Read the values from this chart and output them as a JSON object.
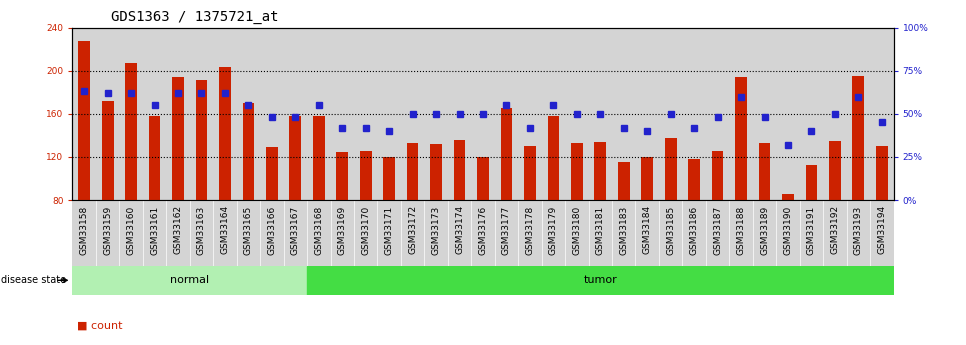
{
  "title": "GDS1363 / 1375721_at",
  "samples": [
    "GSM33158",
    "GSM33159",
    "GSM33160",
    "GSM33161",
    "GSM33162",
    "GSM33163",
    "GSM33164",
    "GSM33165",
    "GSM33166",
    "GSM33167",
    "GSM33168",
    "GSM33169",
    "GSM33170",
    "GSM33171",
    "GSM33172",
    "GSM33173",
    "GSM33174",
    "GSM33176",
    "GSM33177",
    "GSM33178",
    "GSM33179",
    "GSM33180",
    "GSM33181",
    "GSM33183",
    "GSM33184",
    "GSM33185",
    "GSM33186",
    "GSM33187",
    "GSM33188",
    "GSM33189",
    "GSM33190",
    "GSM33191",
    "GSM33192",
    "GSM33193",
    "GSM33194"
  ],
  "counts": [
    228,
    172,
    207,
    158,
    194,
    191,
    203,
    170,
    129,
    158,
    158,
    125,
    126,
    120,
    133,
    132,
    136,
    120,
    165,
    130,
    158,
    133,
    134,
    115,
    120,
    138,
    118,
    126,
    194,
    133,
    86,
    113,
    135,
    195,
    130
  ],
  "percentiles": [
    63,
    62,
    62,
    55,
    62,
    62,
    62,
    55,
    48,
    48,
    55,
    42,
    42,
    40,
    50,
    50,
    50,
    50,
    55,
    42,
    55,
    50,
    50,
    42,
    40,
    50,
    42,
    48,
    60,
    48,
    32,
    40,
    50,
    60,
    45
  ],
  "groups": [
    "normal",
    "normal",
    "normal",
    "normal",
    "normal",
    "normal",
    "normal",
    "normal",
    "normal",
    "normal",
    "tumor",
    "tumor",
    "tumor",
    "tumor",
    "tumor",
    "tumor",
    "tumor",
    "tumor",
    "tumor",
    "tumor",
    "tumor",
    "tumor",
    "tumor",
    "tumor",
    "tumor",
    "tumor",
    "tumor",
    "tumor",
    "tumor",
    "tumor",
    "tumor",
    "tumor",
    "tumor",
    "tumor",
    "tumor"
  ],
  "bar_color": "#cc2200",
  "dot_color": "#2222cc",
  "ylim_left": [
    80,
    240
  ],
  "ylim_right": [
    0,
    100
  ],
  "yticks_left": [
    80,
    120,
    160,
    200,
    240
  ],
  "yticks_right": [
    0,
    25,
    50,
    75,
    100
  ],
  "yticklabels_right": [
    "0",
    "25",
    "50",
    "75",
    "100%"
  ],
  "normal_color": "#b2f0b2",
  "tumor_color": "#44dd44",
  "col_bg_color": "#d4d4d4",
  "plot_bg": "#ffffff",
  "title_fontsize": 10,
  "tick_fontsize": 6.5,
  "bar_bottom": 80
}
